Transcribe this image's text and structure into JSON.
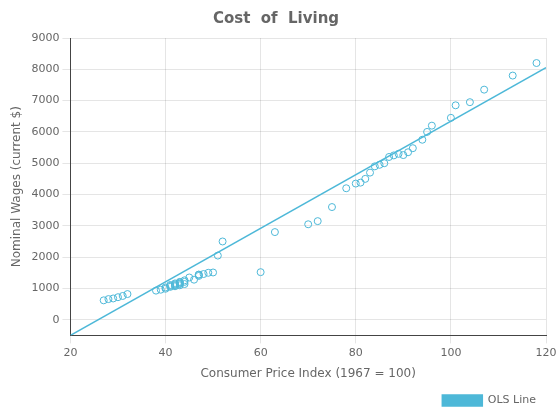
{
  "chart_data": {
    "type": "scatter",
    "title": "Cost  of  Living",
    "x_label": "Consumer Price Index (1967 = 100)",
    "y_label": "Nominal Wages (current $)",
    "xlim": [
      20,
      120
    ],
    "ylim": [
      -500,
      9000
    ],
    "xticks": [
      20,
      40,
      60,
      80,
      100,
      120
    ],
    "yticks": [
      0,
      1000,
      2000,
      3000,
      4000,
      5000,
      6000,
      7000,
      8000,
      9000
    ],
    "grid": true,
    "legend": "lower right",
    "series": [
      {
        "type": "scatter",
        "color": "#4db8d8",
        "marker": "circle",
        "x": [
          27,
          28,
          29,
          30,
          31,
          32,
          38,
          39,
          40,
          40,
          41,
          41,
          41,
          42,
          42,
          42,
          42,
          43,
          43,
          43,
          43,
          43,
          44,
          44,
          44,
          45,
          46,
          47,
          47,
          47,
          48,
          49,
          50,
          51,
          52,
          60,
          63,
          70,
          72,
          75,
          78,
          80,
          81,
          82,
          83,
          84,
          85,
          86,
          87,
          88,
          89,
          90,
          91,
          92,
          94,
          95,
          96,
          100,
          101,
          104,
          107,
          113,
          118
        ],
        "values": [
          620,
          660,
          680,
          720,
          760,
          820,
          930,
          960,
          990,
          1030,
          1050,
          1080,
          1110,
          1070,
          1100,
          1130,
          1160,
          1100,
          1140,
          1160,
          1190,
          1210,
          1140,
          1210,
          1260,
          1350,
          1280,
          1400,
          1440,
          1440,
          1460,
          1500,
          1510,
          2050,
          2500,
          1520,
          2800,
          3050,
          3150,
          3600,
          4200,
          4350,
          4380,
          4500,
          4700,
          4900,
          4950,
          5000,
          5200,
          5250,
          5300,
          5260,
          5350,
          5480,
          5750,
          6000,
          6200,
          6450,
          6850,
          6950,
          7350,
          7800,
          8200
        ]
      },
      {
        "type": "line",
        "name": "OLS Line",
        "color": "#4db8d8",
        "line_style": "solid",
        "x": [
          20,
          120
        ],
        "values": [
          -500,
          8050
        ]
      }
    ]
  }
}
